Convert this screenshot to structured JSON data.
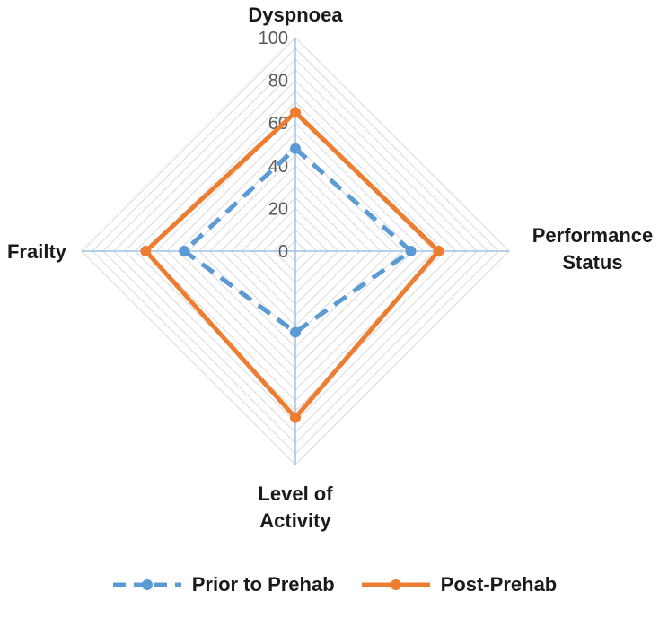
{
  "chart_data": {
    "type": "radar",
    "categories": [
      "Dyspnoea",
      "Performance Status",
      "Level of Activity",
      "Frailty"
    ],
    "category_lines": [
      [
        "Dyspnoea"
      ],
      [
        "Performance",
        "Status"
      ],
      [
        "Level of",
        "Activity"
      ],
      [
        "Frailty"
      ]
    ],
    "ticks": [
      "0",
      "20",
      "40",
      "60",
      "80",
      "100"
    ],
    "ylim": [
      0,
      100
    ],
    "grid": true,
    "legend_position": "bottom",
    "series": [
      {
        "name": "Prior to Prehab",
        "values": [
          48,
          54,
          38,
          52
        ],
        "color": "#5B9BD5",
        "style": "dashed"
      },
      {
        "name": "Post-Prehab",
        "values": [
          65,
          67,
          78,
          70
        ],
        "color": "#ED7D31",
        "style": "solid"
      }
    ]
  }
}
